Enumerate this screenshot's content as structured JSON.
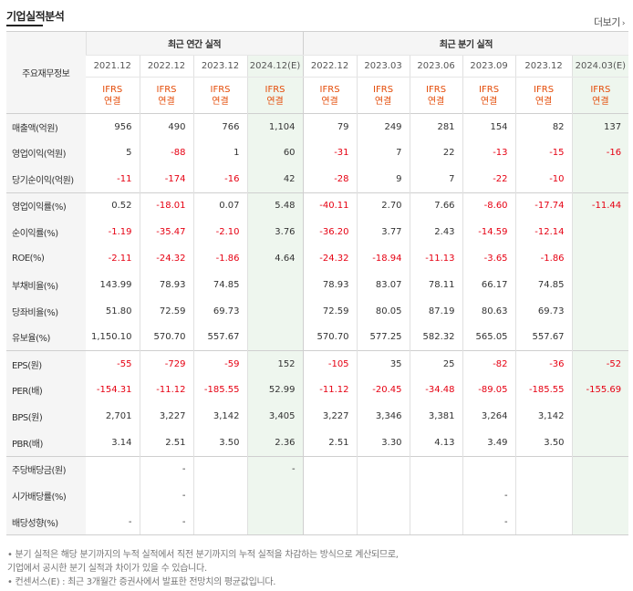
{
  "section_title": "기업실적분석",
  "more_link": "더보기",
  "more_chevron": "›",
  "row_header_label": "주요재무정보",
  "groups": {
    "annual": "최근 연간 실적",
    "quarterly": "최근 분기 실적"
  },
  "periods": [
    "2021.12",
    "2022.12",
    "2023.12",
    "2024.12(E)",
    "2022.12",
    "2023.03",
    "2023.06",
    "2023.09",
    "2023.12",
    "2024.03(E)"
  ],
  "standard": [
    "IFRS",
    "연결"
  ],
  "rows": [
    {
      "label": "매출액(억원)",
      "values": [
        "956",
        "490",
        "766",
        "1,104",
        "79",
        "249",
        "281",
        "154",
        "82",
        "137"
      ]
    },
    {
      "label": "영업이익(억원)",
      "values": [
        "5",
        "-88",
        "1",
        "60",
        "-31",
        "7",
        "22",
        "-13",
        "-15",
        "-16"
      ]
    },
    {
      "label": "당기순이익(억원)",
      "values": [
        "-11",
        "-174",
        "-16",
        "42",
        "-28",
        "9",
        "7",
        "-22",
        "-10",
        ""
      ]
    },
    {
      "label": "영업이익률(%)",
      "values": [
        "0.52",
        "-18.01",
        "0.07",
        "5.48",
        "-40.11",
        "2.70",
        "7.66",
        "-8.60",
        "-17.74",
        "-11.44"
      ]
    },
    {
      "label": "순이익률(%)",
      "values": [
        "-1.19",
        "-35.47",
        "-2.10",
        "3.76",
        "-36.20",
        "3.77",
        "2.43",
        "-14.59",
        "-12.14",
        ""
      ]
    },
    {
      "label": "ROE(%)",
      "values": [
        "-2.11",
        "-24.32",
        "-1.86",
        "4.64",
        "-24.32",
        "-18.94",
        "-11.13",
        "-3.65",
        "-1.86",
        ""
      ]
    },
    {
      "label": "부채비율(%)",
      "values": [
        "143.99",
        "78.93",
        "74.85",
        "",
        "78.93",
        "83.07",
        "78.11",
        "66.17",
        "74.85",
        ""
      ]
    },
    {
      "label": "당좌비율(%)",
      "values": [
        "51.80",
        "72.59",
        "69.73",
        "",
        "72.59",
        "80.05",
        "87.19",
        "80.63",
        "69.73",
        ""
      ]
    },
    {
      "label": "유보율(%)",
      "values": [
        "1,150.10",
        "570.70",
        "557.67",
        "",
        "570.70",
        "577.25",
        "582.32",
        "565.05",
        "557.67",
        ""
      ]
    },
    {
      "label": "EPS(원)",
      "values": [
        "-55",
        "-729",
        "-59",
        "152",
        "-105",
        "35",
        "25",
        "-82",
        "-36",
        "-52"
      ]
    },
    {
      "label": "PER(배)",
      "values": [
        "-154.31",
        "-11.12",
        "-185.55",
        "52.99",
        "-11.12",
        "-20.45",
        "-34.48",
        "-89.05",
        "-185.55",
        "-155.69"
      ]
    },
    {
      "label": "BPS(원)",
      "values": [
        "2,701",
        "3,227",
        "3,142",
        "3,405",
        "3,227",
        "3,346",
        "3,381",
        "3,264",
        "3,142",
        ""
      ]
    },
    {
      "label": "PBR(배)",
      "values": [
        "3.14",
        "2.51",
        "3.50",
        "2.36",
        "2.51",
        "3.30",
        "4.13",
        "3.49",
        "3.50",
        ""
      ]
    },
    {
      "label": "주당배당금(원)",
      "values": [
        "",
        "-",
        "",
        "-",
        "",
        "",
        "",
        "",
        "",
        ""
      ]
    },
    {
      "label": "시가배당률(%)",
      "values": [
        "",
        "-",
        "",
        "",
        "",
        "",
        "",
        "-",
        "",
        ""
      ]
    },
    {
      "label": "배당성향(%)",
      "values": [
        "-",
        "-",
        "",
        "",
        "",
        "",
        "",
        "-",
        "",
        ""
      ]
    }
  ],
  "notes": [
    "• 분기 실적은 해당 분기까지의 누적 실적에서 직전 분기까지의 누적 실적을 차감하는 방식으로 계산되므로,",
    "   기업에서 공시한 분기 실적과 차이가 있을 수 있습니다.",
    "• 컨센서스(E) : 최근 3개월간 증권사에서 발표한 전망치의 평균값입니다."
  ],
  "colors": {
    "negative": "#e60012",
    "ifrs": "#e44c09",
    "estimate_bg": "#eef6ee",
    "header_bg": "#f5f5f5"
  }
}
